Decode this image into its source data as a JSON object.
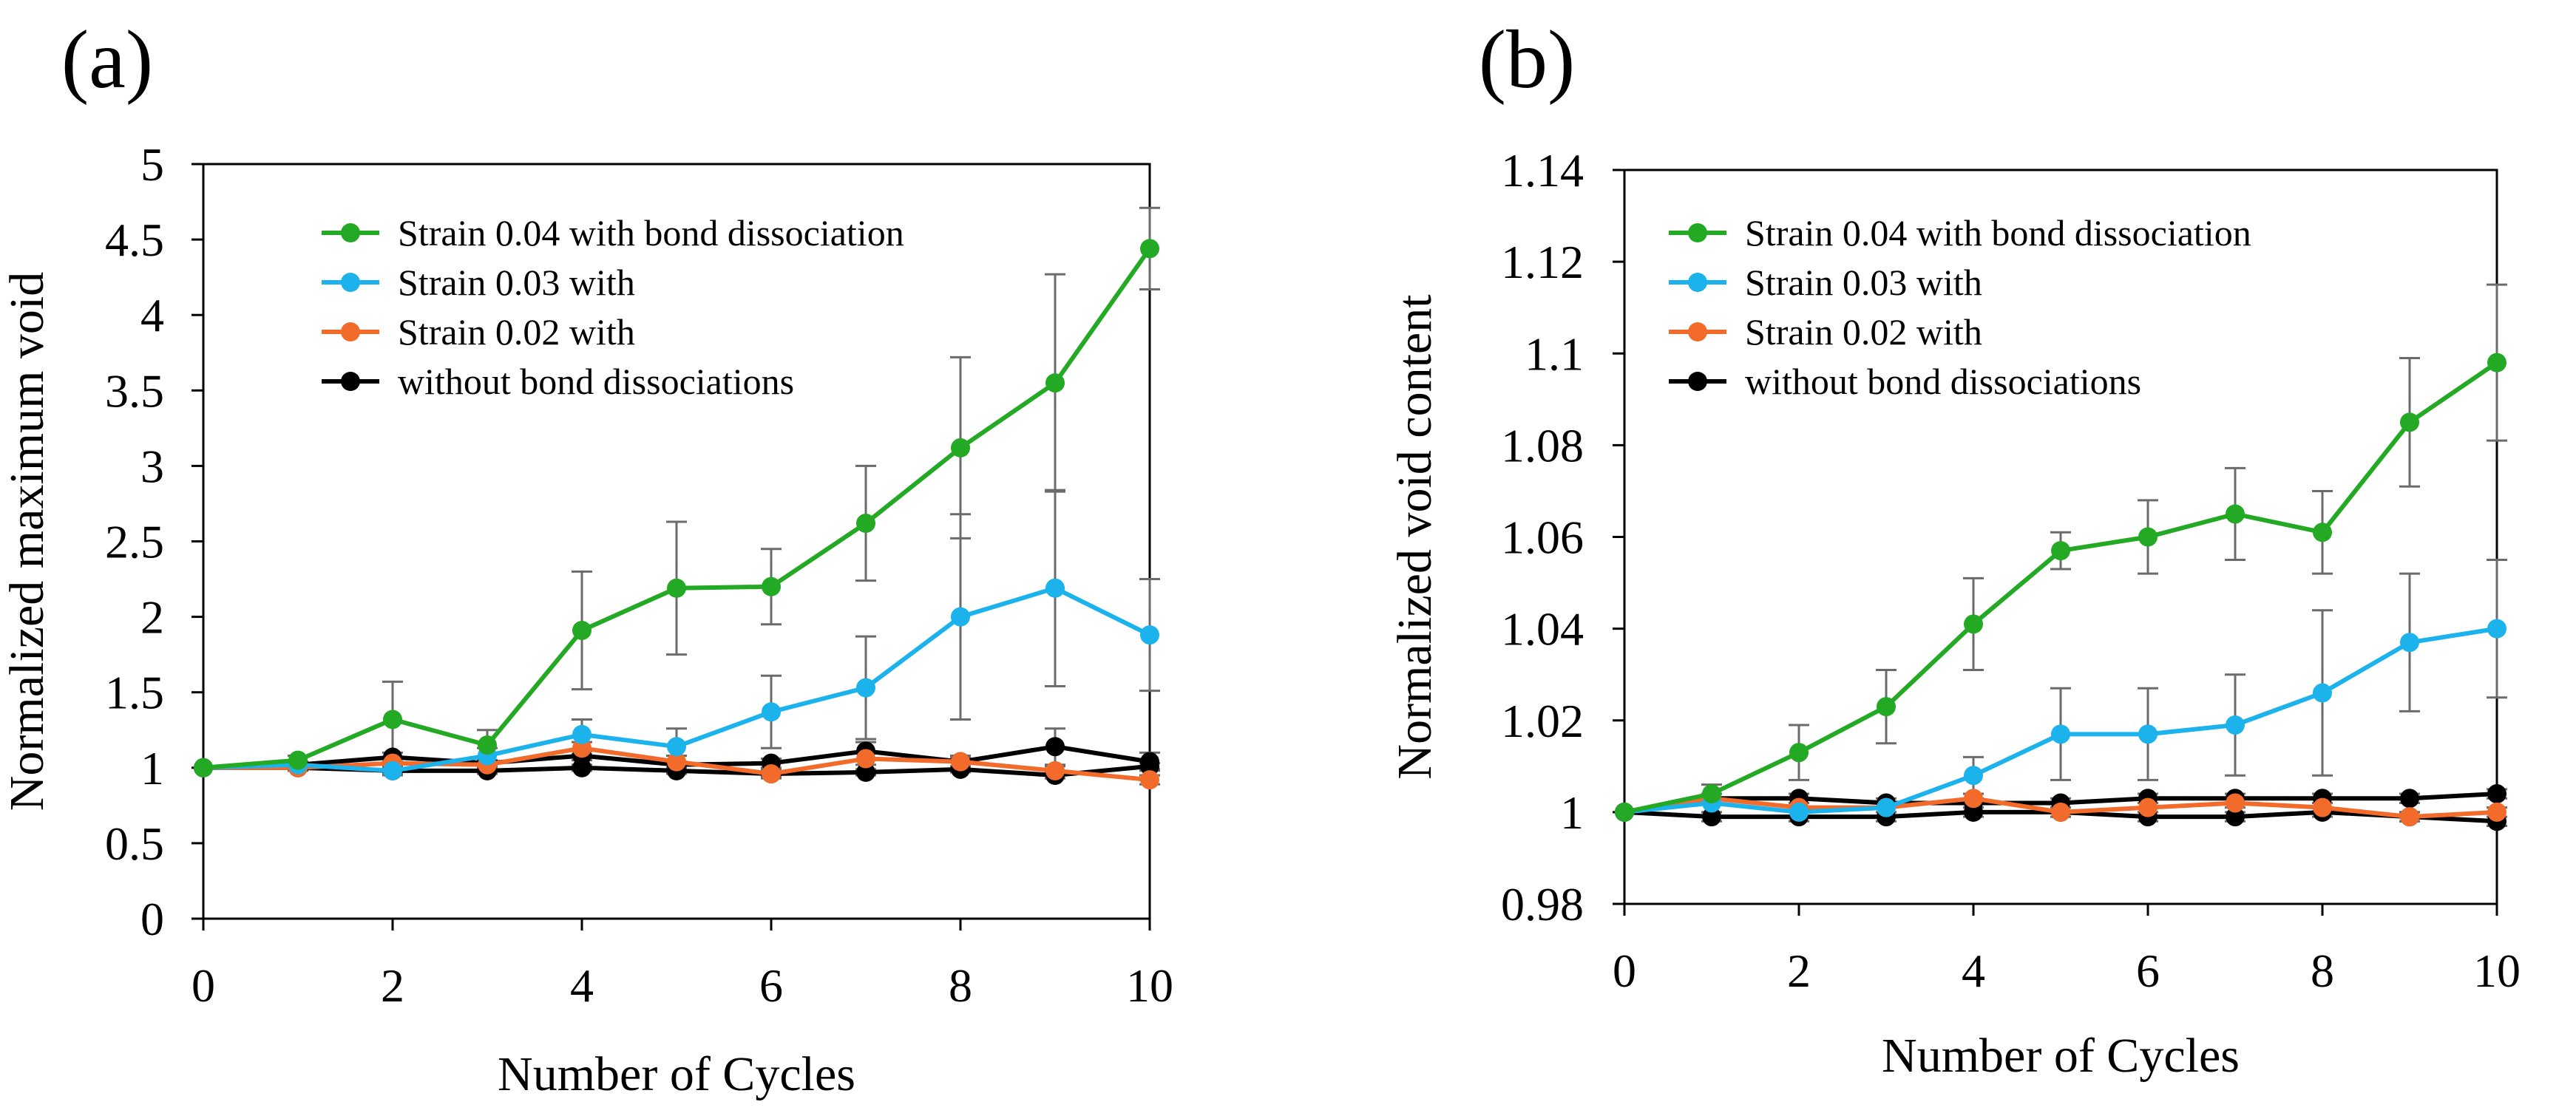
{
  "colors": {
    "green": "#23a923",
    "blue": "#1cb2ec",
    "orange": "#f26b2a",
    "black": "#000000",
    "error_bar": "#6b6b6b",
    "axis": "#000000"
  },
  "chart_data": [
    {
      "panel": "(a)",
      "type": "line",
      "title": "",
      "xlabel": "Number of Cycles",
      "ylabel": "Normalized  maximum void",
      "xlim": [
        0,
        10
      ],
      "ylim": [
        0,
        5
      ],
      "x": [
        0,
        1,
        2,
        3,
        4,
        5,
        6,
        7,
        8,
        9,
        10
      ],
      "x_ticks": [
        0,
        2,
        4,
        6,
        8,
        10
      ],
      "x_tick_labels": [
        "0",
        "2",
        "4",
        "6",
        "8",
        "10"
      ],
      "y_ticks": [
        0,
        0.5,
        1,
        1.5,
        2,
        2.5,
        3,
        3.5,
        4,
        4.5,
        5
      ],
      "y_tick_labels": [
        "0",
        "0.5",
        "1",
        "1.5",
        "2",
        "2.5",
        "3",
        "3.5",
        "4",
        "4.5",
        "5"
      ],
      "legend_position": "top-left",
      "legend": [
        {
          "label": "Strain 0.04 with bond dissociation",
          "color": "green"
        },
        {
          "label": "Strain 0.03 with",
          "color": "blue"
        },
        {
          "label": "Strain 0.02 with",
          "color": "orange"
        },
        {
          "label": "without bond dissociations",
          "color": "black"
        }
      ],
      "series": [
        {
          "name": "Strain 0.04 with bond dissociation",
          "color": "green",
          "values": [
            1,
            1.05,
            1.32,
            1.15,
            1.91,
            2.19,
            2.2,
            2.62,
            3.12,
            3.55,
            4.44
          ],
          "errors": [
            0,
            0.03,
            0.25,
            0.1,
            0.39,
            0.44,
            0.25,
            0.38,
            0.6,
            0.72,
            0.27
          ]
        },
        {
          "name": "Strain 0.03 with bond dissociation",
          "color": "blue",
          "values": [
            1,
            1.02,
            0.98,
            1.08,
            1.22,
            1.14,
            1.37,
            1.53,
            2.0,
            2.19,
            1.88
          ],
          "errors": [
            0,
            0.02,
            0.03,
            0.05,
            0.1,
            0.12,
            0.24,
            0.34,
            0.68,
            0.65,
            0.37
          ]
        },
        {
          "name": "Strain 0.02 with bond dissociation",
          "color": "orange",
          "values": [
            1,
            1.0,
            1.03,
            1.02,
            1.13,
            1.04,
            0.96,
            1.06,
            1.04,
            0.98,
            0.92
          ],
          "errors": [
            0,
            0.02,
            0.03,
            0.03,
            0.04,
            0.04,
            0.03,
            0.04,
            0.04,
            0.03,
            0.03
          ]
        },
        {
          "name": "without bond dissociations (upper)",
          "color": "black",
          "values": [
            1,
            1.02,
            1.07,
            1.03,
            1.08,
            1.02,
            1.03,
            1.11,
            1.04,
            1.14,
            1.04
          ],
          "errors": [
            0,
            0.02,
            0.03,
            0.02,
            0.03,
            0.02,
            0.03,
            0.06,
            0.03,
            0.12,
            0.06
          ]
        },
        {
          "name": "without bond dissociations (lower)",
          "color": "black",
          "values": [
            1,
            1.0,
            0.98,
            0.98,
            1.0,
            0.98,
            0.96,
            0.97,
            0.99,
            0.95,
            1.01
          ],
          "errors": [
            0,
            0.01,
            0.02,
            0.02,
            0.02,
            0.02,
            0.02,
            0.02,
            0.02,
            0.02,
            0.02
          ]
        }
      ]
    },
    {
      "panel": "(b)",
      "type": "line",
      "title": "",
      "xlabel": "Number of Cycles",
      "ylabel": "Normalized  void content",
      "xlim": [
        0,
        10
      ],
      "ylim": [
        0.98,
        1.14
      ],
      "x": [
        0,
        1,
        2,
        3,
        4,
        5,
        6,
        7,
        8,
        9,
        10
      ],
      "x_ticks": [
        0,
        2,
        4,
        6,
        8,
        10
      ],
      "x_tick_labels": [
        "0",
        "2",
        "4",
        "6",
        "8",
        "10"
      ],
      "y_ticks": [
        0.98,
        1.0,
        1.02,
        1.04,
        1.06,
        1.08,
        1.1,
        1.12,
        1.14
      ],
      "y_tick_labels": [
        "0.98",
        "1",
        "1.02",
        "1.04",
        "1.06",
        "1.08",
        "1.1",
        "1.12",
        "1.14"
      ],
      "legend_position": "top-left",
      "legend": [
        {
          "label": "Strain 0.04 with bond dissociation",
          "color": "green"
        },
        {
          "label": "Strain 0.03 with",
          "color": "blue"
        },
        {
          "label": "Strain 0.02 with",
          "color": "orange"
        },
        {
          "label": "without bond dissociations",
          "color": "black"
        }
      ],
      "series": [
        {
          "name": "Strain 0.04 with bond dissociation",
          "color": "green",
          "values": [
            1,
            1.004,
            1.013,
            1.023,
            1.041,
            1.057,
            1.06,
            1.065,
            1.061,
            1.085,
            1.098
          ],
          "errors": [
            0,
            0.002,
            0.006,
            0.008,
            0.01,
            0.004,
            0.008,
            0.01,
            0.009,
            0.014,
            0.017
          ]
        },
        {
          "name": "Strain 0.03 with bond dissociation",
          "color": "blue",
          "values": [
            1,
            1.002,
            1.0,
            1.001,
            1.008,
            1.017,
            1.017,
            1.019,
            1.026,
            1.037,
            1.04
          ],
          "errors": [
            0,
            0.002,
            0.001,
            0.001,
            0.004,
            0.01,
            0.01,
            0.011,
            0.018,
            0.015,
            0.015
          ]
        },
        {
          "name": "Strain 0.02 with bond dissociation",
          "color": "orange",
          "values": [
            1,
            1.003,
            1.001,
            1.001,
            1.003,
            1.0,
            1.001,
            1.002,
            1.001,
            0.999,
            1.0
          ],
          "errors": [
            0,
            0.001,
            0.001,
            0.001,
            0.001,
            0.001,
            0.001,
            0.001,
            0.001,
            0.001,
            0.001
          ]
        },
        {
          "name": "without bond dissociations (upper)",
          "color": "black",
          "values": [
            1,
            1.003,
            1.003,
            1.002,
            1.002,
            1.002,
            1.003,
            1.003,
            1.003,
            1.003,
            1.004
          ],
          "errors": [
            0,
            0.001,
            0.001,
            0.001,
            0.001,
            0.001,
            0.001,
            0.001,
            0.001,
            0.001,
            0.001
          ]
        },
        {
          "name": "without bond dissociations (lower)",
          "color": "black",
          "values": [
            1,
            0.999,
            0.999,
            0.999,
            1.0,
            1.0,
            0.999,
            0.999,
            1.0,
            0.999,
            0.998
          ],
          "errors": [
            0,
            0.001,
            0.001,
            0.001,
            0.001,
            0.001,
            0.001,
            0.001,
            0.001,
            0.001,
            0.001
          ]
        }
      ]
    }
  ]
}
